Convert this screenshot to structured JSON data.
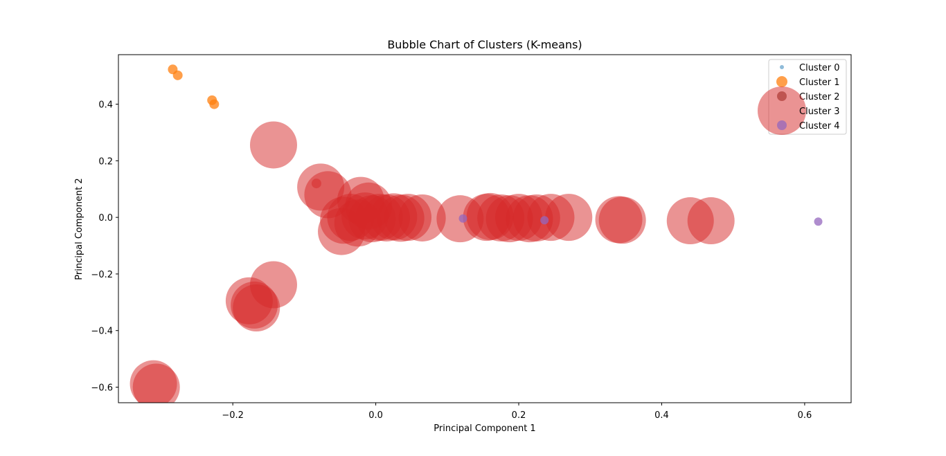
{
  "chart_data": {
    "type": "scatter",
    "title": "Bubble Chart of Clusters (K-means)",
    "xlabel": "Principal Component 1",
    "ylabel": "Principal Component 2",
    "xlim": [
      -0.36,
      0.665
    ],
    "ylim": [
      -0.655,
      0.575
    ],
    "xticks": [
      -0.2,
      0.0,
      0.2,
      0.4,
      0.6
    ],
    "xtick_labels": [
      "−0.2",
      "0.0",
      "0.2",
      "0.4",
      "0.6"
    ],
    "yticks": [
      -0.6,
      -0.4,
      -0.2,
      0.0,
      0.2,
      0.4
    ],
    "ytick_labels": [
      "−0.6",
      "−0.4",
      "−0.2",
      "0.0",
      "0.2",
      "0.4"
    ],
    "grid": false,
    "legend_position": "top-right",
    "series": [
      {
        "name": "Cluster 0",
        "color": "#1f77b4",
        "alpha": 0.5,
        "legend_size": 3,
        "points": []
      },
      {
        "name": "Cluster 1",
        "color": "#ff7f0e",
        "alpha": 0.75,
        "legend_size": 8,
        "points": [
          {
            "x": -0.284,
            "y": 0.523,
            "size": 7
          },
          {
            "x": -0.277,
            "y": 0.502,
            "size": 7
          },
          {
            "x": -0.229,
            "y": 0.414,
            "size": 7
          },
          {
            "x": -0.226,
            "y": 0.4,
            "size": 7
          }
        ]
      },
      {
        "name": "Cluster 2",
        "color": "#8c564b",
        "alpha": 0.75,
        "legend_size": 7,
        "points": []
      },
      {
        "name": "Cluster 3",
        "color": "#d62728",
        "alpha": 0.5,
        "legend_size": 35,
        "points": [
          {
            "x": -0.143,
            "y": 0.256,
            "size": 34
          },
          {
            "x": -0.077,
            "y": 0.107,
            "size": 34
          },
          {
            "x": -0.067,
            "y": 0.08,
            "size": 34
          },
          {
            "x": -0.021,
            "y": 0.06,
            "size": 34
          },
          {
            "x": -0.01,
            "y": 0.04,
            "size": 34
          },
          {
            "x": -0.048,
            "y": -0.05,
            "size": 34
          },
          {
            "x": -0.045,
            "y": -0.01,
            "size": 34
          },
          {
            "x": -0.035,
            "y": 0.0,
            "size": 34
          },
          {
            "x": -0.025,
            "y": -0.02,
            "size": 34
          },
          {
            "x": -0.015,
            "y": 0.005,
            "size": 34
          },
          {
            "x": -0.005,
            "y": -0.005,
            "size": 34
          },
          {
            "x": 0.005,
            "y": 0.0,
            "size": 34
          },
          {
            "x": 0.015,
            "y": -0.002,
            "size": 34
          },
          {
            "x": 0.025,
            "y": 0.002,
            "size": 34
          },
          {
            "x": 0.035,
            "y": -0.003,
            "size": 34
          },
          {
            "x": 0.045,
            "y": 0.0,
            "size": 34
          },
          {
            "x": 0.065,
            "y": -0.002,
            "size": 34
          },
          {
            "x": 0.118,
            "y": -0.005,
            "size": 34
          },
          {
            "x": 0.155,
            "y": 0.0,
            "size": 34
          },
          {
            "x": 0.16,
            "y": 0.003,
            "size": 34
          },
          {
            "x": 0.175,
            "y": -0.002,
            "size": 34
          },
          {
            "x": 0.187,
            "y": -0.005,
            "size": 34
          },
          {
            "x": 0.2,
            "y": 0.0,
            "size": 34
          },
          {
            "x": 0.215,
            "y": -0.005,
            "size": 34
          },
          {
            "x": 0.225,
            "y": -0.002,
            "size": 34
          },
          {
            "x": 0.245,
            "y": 0.0,
            "size": 34
          },
          {
            "x": 0.27,
            "y": 0.0,
            "size": 34
          },
          {
            "x": 0.34,
            "y": -0.008,
            "size": 34
          },
          {
            "x": 0.345,
            "y": -0.01,
            "size": 34
          },
          {
            "x": 0.44,
            "y": -0.012,
            "size": 34
          },
          {
            "x": 0.469,
            "y": -0.012,
            "size": 34
          },
          {
            "x": -0.143,
            "y": -0.238,
            "size": 34
          },
          {
            "x": -0.177,
            "y": -0.295,
            "size": 34
          },
          {
            "x": -0.17,
            "y": -0.31,
            "size": 34
          },
          {
            "x": -0.167,
            "y": -0.32,
            "size": 34
          },
          {
            "x": -0.311,
            "y": -0.588,
            "size": 34
          },
          {
            "x": -0.307,
            "y": -0.6,
            "size": 34
          },
          {
            "x": -0.083,
            "y": 0.12,
            "size": 7
          }
        ]
      },
      {
        "name": "Cluster 4",
        "color": "#9467bd",
        "alpha": 0.75,
        "legend_size": 7,
        "points": [
          {
            "x": 0.122,
            "y": -0.004,
            "size": 6
          },
          {
            "x": 0.236,
            "y": -0.01,
            "size": 6
          },
          {
            "x": 0.619,
            "y": -0.015,
            "size": 6
          }
        ]
      }
    ]
  }
}
